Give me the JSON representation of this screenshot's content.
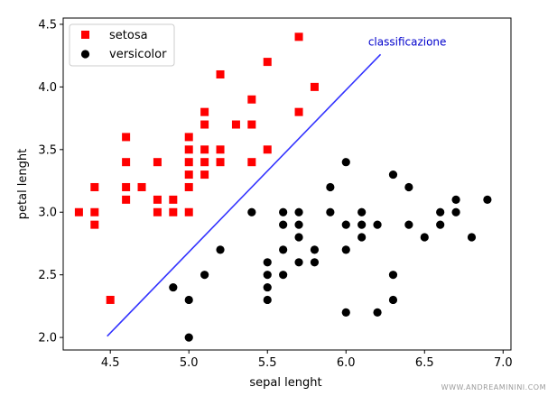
{
  "chart_data": {
    "type": "scatter",
    "xlabel": "sepal lenght",
    "ylabel": "petal lenght",
    "xlim": [
      4.2,
      7.05
    ],
    "ylim": [
      1.9,
      4.55
    ],
    "xticks": [
      4.5,
      5.0,
      5.5,
      6.0,
      6.5,
      7.0
    ],
    "xtick_labels": [
      "4.5",
      "5.0",
      "5.5",
      "6.0",
      "6.5",
      "7.0"
    ],
    "yticks": [
      2.0,
      2.5,
      3.0,
      3.5,
      4.0,
      4.5
    ],
    "ytick_labels": [
      "2.0",
      "2.5",
      "3.0",
      "3.5",
      "4.0",
      "4.5"
    ],
    "legend_position": "top-left",
    "series": [
      {
        "name": "setosa",
        "marker": "square",
        "color": "#ff0000",
        "points": [
          [
            4.3,
            3.0
          ],
          [
            4.4,
            3.2
          ],
          [
            4.4,
            3.0
          ],
          [
            4.4,
            2.9
          ],
          [
            4.5,
            2.3
          ],
          [
            4.6,
            3.6
          ],
          [
            4.6,
            3.4
          ],
          [
            4.6,
            3.2
          ],
          [
            4.6,
            3.1
          ],
          [
            4.7,
            3.2
          ],
          [
            4.8,
            3.4
          ],
          [
            4.8,
            3.1
          ],
          [
            4.8,
            3.0
          ],
          [
            4.9,
            3.1
          ],
          [
            4.9,
            3.0
          ],
          [
            5.0,
            3.6
          ],
          [
            5.0,
            3.5
          ],
          [
            5.0,
            3.4
          ],
          [
            5.0,
            3.3
          ],
          [
            5.0,
            3.2
          ],
          [
            5.0,
            3.0
          ],
          [
            5.1,
            3.8
          ],
          [
            5.1,
            3.7
          ],
          [
            5.1,
            3.5
          ],
          [
            5.1,
            3.4
          ],
          [
            5.1,
            3.3
          ],
          [
            5.2,
            4.1
          ],
          [
            5.2,
            3.5
          ],
          [
            5.2,
            3.4
          ],
          [
            5.3,
            3.7
          ],
          [
            5.4,
            3.9
          ],
          [
            5.4,
            3.7
          ],
          [
            5.4,
            3.4
          ],
          [
            5.5,
            4.2
          ],
          [
            5.5,
            3.5
          ],
          [
            5.7,
            4.4
          ],
          [
            5.7,
            3.8
          ],
          [
            5.8,
            4.0
          ]
        ]
      },
      {
        "name": "versicolor",
        "marker": "circle",
        "color": "#000000",
        "points": [
          [
            4.9,
            2.4
          ],
          [
            5.0,
            2.3
          ],
          [
            5.0,
            2.0
          ],
          [
            5.1,
            2.5
          ],
          [
            5.2,
            2.7
          ],
          [
            5.4,
            3.0
          ],
          [
            5.5,
            2.6
          ],
          [
            5.5,
            2.5
          ],
          [
            5.5,
            2.4
          ],
          [
            5.5,
            2.3
          ],
          [
            5.6,
            3.0
          ],
          [
            5.6,
            2.9
          ],
          [
            5.6,
            2.7
          ],
          [
            5.6,
            2.5
          ],
          [
            5.7,
            3.0
          ],
          [
            5.7,
            2.9
          ],
          [
            5.7,
            2.8
          ],
          [
            5.7,
            2.6
          ],
          [
            5.8,
            2.7
          ],
          [
            5.8,
            2.6
          ],
          [
            5.9,
            3.2
          ],
          [
            5.9,
            3.0
          ],
          [
            6.0,
            3.4
          ],
          [
            6.0,
            2.9
          ],
          [
            6.0,
            2.7
          ],
          [
            6.0,
            2.2
          ],
          [
            6.1,
            3.0
          ],
          [
            6.1,
            2.9
          ],
          [
            6.1,
            2.8
          ],
          [
            6.2,
            2.9
          ],
          [
            6.2,
            2.2
          ],
          [
            6.3,
            3.3
          ],
          [
            6.3,
            2.5
          ],
          [
            6.3,
            2.3
          ],
          [
            6.4,
            3.2
          ],
          [
            6.4,
            2.9
          ],
          [
            6.5,
            2.8
          ],
          [
            6.6,
            3.0
          ],
          [
            6.6,
            2.9
          ],
          [
            6.7,
            3.1
          ],
          [
            6.7,
            3.0
          ],
          [
            6.8,
            2.8
          ],
          [
            6.9,
            3.1
          ]
        ]
      }
    ],
    "line": {
      "name": "classificazione",
      "color": "#3333ff",
      "points": [
        [
          4.48,
          2.01
        ],
        [
          6.22,
          4.26
        ]
      ]
    },
    "annotation": {
      "text": "classificazione",
      "anchor": [
        6.39,
        4.33
      ]
    }
  },
  "watermark": "WWW.ANDREAMININI.COM"
}
